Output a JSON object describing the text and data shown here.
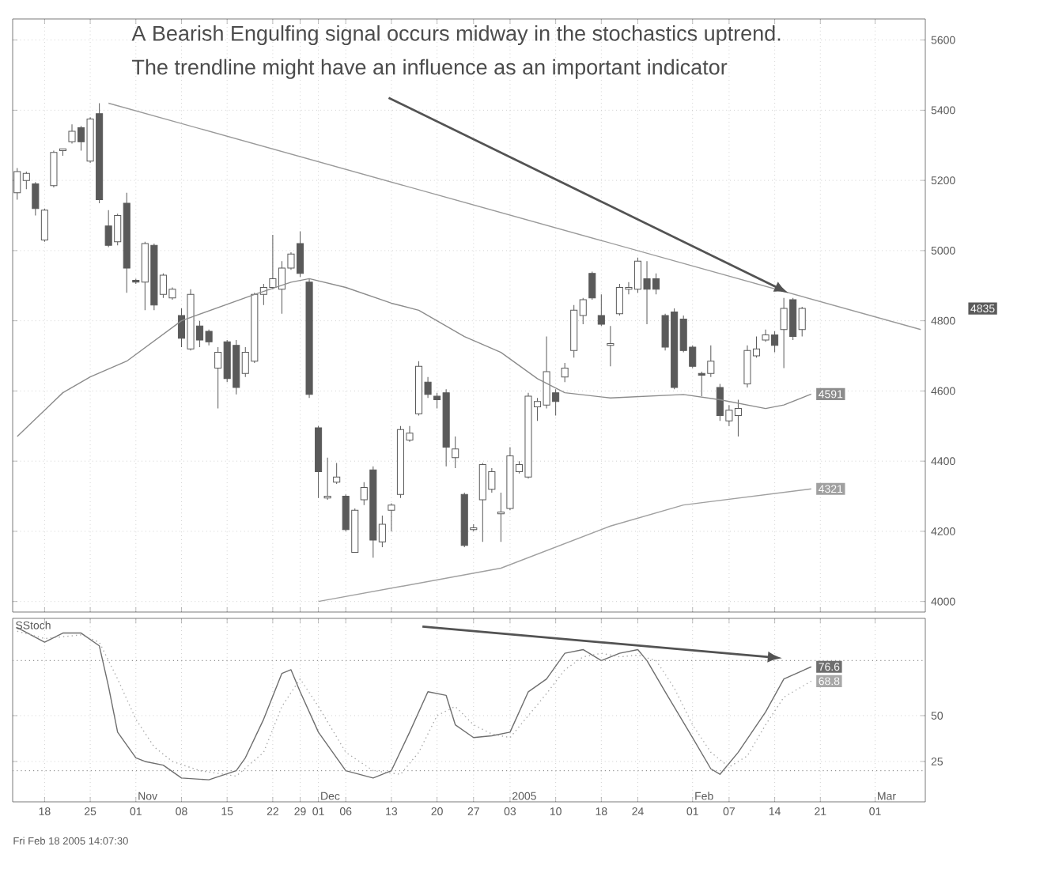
{
  "chart_data": [
    {
      "type": "candlestick",
      "categories": [
        null,
        null,
        null,
        "18",
        null,
        null,
        null,
        null,
        "25",
        null,
        null,
        null,
        null,
        "01",
        null,
        null,
        null,
        null,
        "08",
        null,
        null,
        null,
        null,
        "15",
        null,
        null,
        null,
        null,
        "22",
        null,
        null,
        "29",
        null,
        "01",
        null,
        null,
        "06",
        null,
        null,
        null,
        null,
        "13",
        null,
        null,
        null,
        null,
        "20",
        null,
        null,
        null,
        "27",
        null,
        null,
        null,
        "03",
        null,
        null,
        null,
        null,
        "10",
        null,
        null,
        null,
        null,
        "18",
        null,
        null,
        null,
        "24",
        null,
        null,
        null,
        null,
        null,
        "01",
        null,
        null,
        null,
        "07",
        null,
        null,
        null,
        null,
        "14",
        null,
        null,
        null,
        null,
        "21",
        null,
        null,
        null,
        null,
        null,
        "01",
        null,
        null,
        null,
        null,
        null
      ],
      "series": [
        {
          "type": "candlestick",
          "color": "#5a5a5a",
          "ohlc": [
            [
              5165,
              5235,
              5145,
              5225
            ],
            [
              5200,
              5225,
              5175,
              5220
            ],
            [
              5190,
              5195,
              5100,
              5120
            ],
            [
              5030,
              5120,
              5025,
              5115
            ],
            [
              5185,
              5285,
              5180,
              5280
            ],
            [
              5285,
              5290,
              5270,
              5290
            ],
            [
              5310,
              5360,
              5305,
              5340
            ],
            [
              5350,
              5355,
              5285,
              5310
            ],
            [
              5255,
              5380,
              5250,
              5375
            ],
            [
              5390,
              5420,
              5135,
              5145
            ],
            [
              5070,
              5115,
              5010,
              5015
            ],
            [
              5025,
              5105,
              5015,
              5100
            ],
            [
              5135,
              5165,
              4880,
              4950
            ],
            [
              4915,
              4920,
              4905,
              4910
            ],
            [
              4910,
              5025,
              4830,
              5020
            ],
            [
              5015,
              5020,
              4830,
              4845
            ],
            [
              4875,
              4935,
              4865,
              4930
            ],
            [
              4865,
              4895,
              4860,
              4890
            ],
            [
              4815,
              4835,
              4725,
              4750
            ],
            [
              4720,
              4890,
              4715,
              4875
            ],
            [
              4785,
              4800,
              4725,
              4745
            ],
            [
              4770,
              4775,
              4730,
              4740
            ],
            [
              4665,
              4725,
              4550,
              4710
            ],
            [
              4740,
              4745,
              4625,
              4635
            ],
            [
              4730,
              4745,
              4590,
              4610
            ],
            [
              4650,
              4725,
              4640,
              4710
            ],
            [
              4685,
              4880,
              4680,
              4875
            ],
            [
              4875,
              4905,
              4845,
              4895
            ],
            [
              4895,
              5045,
              4890,
              4920
            ],
            [
              4890,
              4970,
              4820,
              4950
            ],
            [
              4950,
              4995,
              4945,
              4990
            ],
            [
              5020,
              5055,
              4925,
              4935
            ],
            [
              4910,
              4920,
              4580,
              4590
            ],
            [
              4495,
              4500,
              4295,
              4370
            ],
            [
              4295,
              4410,
              4290,
              4300
            ],
            [
              4340,
              4395,
              4335,
              4355
            ],
            [
              4300,
              4305,
              4200,
              4205
            ],
            [
              4140,
              4265,
              4140,
              4260
            ],
            [
              4290,
              4340,
              4275,
              4325
            ],
            [
              4375,
              4385,
              4125,
              4175
            ],
            [
              4170,
              4245,
              4155,
              4220
            ],
            [
              4260,
              4280,
              4200,
              4275
            ],
            [
              4305,
              4500,
              4295,
              4490
            ],
            [
              4460,
              4500,
              4455,
              4480
            ],
            [
              4535,
              4685,
              4530,
              4670
            ],
            [
              4625,
              4640,
              4580,
              4590
            ],
            [
              4585,
              4595,
              4550,
              4575
            ],
            [
              4595,
              4605,
              4385,
              4440
            ],
            [
              4410,
              4470,
              4380,
              4435
            ],
            [
              4305,
              4310,
              4155,
              4160
            ],
            [
              4205,
              4220,
              4200,
              4210
            ],
            [
              4290,
              4395,
              4170,
              4390
            ],
            [
              4320,
              4380,
              4310,
              4370
            ],
            [
              4250,
              4310,
              4170,
              4255
            ],
            [
              4265,
              4440,
              4260,
              4415
            ],
            [
              4370,
              4400,
              4365,
              4390
            ],
            [
              4355,
              4595,
              4350,
              4585
            ],
            [
              4555,
              4580,
              4515,
              4570
            ],
            [
              4560,
              4755,
              4550,
              4655
            ],
            [
              4595,
              4605,
              4530,
              4570
            ],
            [
              4640,
              4680,
              4625,
              4665
            ],
            [
              4715,
              4845,
              4695,
              4830
            ],
            [
              4815,
              4865,
              4790,
              4860
            ],
            [
              4935,
              4940,
              4860,
              4865
            ],
            [
              4815,
              4875,
              4785,
              4790
            ],
            [
              4730,
              4785,
              4670,
              4735
            ],
            [
              4820,
              4905,
              4815,
              4895
            ],
            [
              4890,
              4910,
              4875,
              4895
            ],
            [
              4890,
              4980,
              4880,
              4970
            ],
            [
              4920,
              4970,
              4790,
              4890
            ],
            [
              4920,
              4935,
              4875,
              4890
            ],
            [
              4815,
              4820,
              4715,
              4725
            ],
            [
              4825,
              4835,
              4605,
              4610
            ],
            [
              4805,
              4815,
              4710,
              4715
            ],
            [
              4725,
              4730,
              4665,
              4670
            ],
            [
              4650,
              4655,
              4585,
              4645
            ],
            [
              4650,
              4730,
              4640,
              4685
            ],
            [
              4610,
              4620,
              4515,
              4530
            ],
            [
              4515,
              4560,
              4500,
              4545
            ],
            [
              4530,
              4575,
              4470,
              4550
            ],
            [
              4620,
              4730,
              4610,
              4715
            ],
            [
              4700,
              4755,
              4695,
              4720
            ],
            [
              4745,
              4775,
              4740,
              4760
            ],
            [
              4760,
              4770,
              4710,
              4730
            ],
            [
              4775,
              4865,
              4665,
              4835
            ],
            [
              4860,
              4865,
              4745,
              4755
            ],
            [
              4775,
              4840,
              4755,
              4835
            ],
            null,
            null,
            null,
            null,
            null,
            null,
            null,
            null,
            null,
            null,
            null,
            null,
            null
          ],
          "value_labels": [
            null,
            null,
            null,
            null,
            null,
            null,
            null,
            null,
            null,
            null,
            null,
            null,
            null,
            null,
            null,
            null,
            null,
            null,
            null,
            null,
            null,
            null,
            null,
            null,
            null,
            null,
            null,
            null,
            null,
            null,
            null,
            null,
            null,
            null,
            null,
            null,
            null,
            null,
            null,
            null,
            null,
            null,
            null,
            null,
            null,
            null,
            null,
            null,
            null,
            null,
            null,
            null,
            null,
            null,
            null,
            null,
            null,
            null,
            null,
            null,
            null,
            null,
            null,
            null,
            null,
            null,
            null,
            null,
            null,
            null,
            null,
            null,
            null,
            null,
            null,
            null,
            null,
            null,
            null,
            null,
            null,
            null,
            null,
            null,
            null,
            null,
            "4835",
            null,
            null,
            null,
            null,
            null,
            null,
            null,
            null,
            null,
            null,
            null,
            null,
            null
          ]
        },
        {
          "type": "line",
          "color": "#8c8c8c",
          "value_labels": [
            null,
            null,
            null,
            null,
            null,
            null,
            null,
            null,
            null,
            null,
            null,
            null,
            null,
            null,
            null,
            null,
            null,
            null,
            null,
            null,
            null,
            null,
            null,
            null,
            null,
            null,
            null,
            null,
            null,
            null,
            null,
            null,
            null,
            null,
            null,
            null,
            null,
            null,
            null,
            null,
            null,
            null,
            null,
            null,
            null,
            null,
            null,
            null,
            null,
            null,
            null,
            null,
            null,
            null,
            null,
            null,
            null,
            null,
            null,
            null,
            null,
            null,
            null,
            null,
            null,
            null,
            null,
            null,
            null,
            null,
            null,
            null,
            null,
            null,
            null,
            null,
            null,
            null,
            null,
            null,
            null,
            null,
            null,
            null,
            null,
            null,
            null,
            "4591",
            null,
            null,
            null,
            null,
            null,
            null,
            null,
            null,
            null,
            null,
            null,
            null
          ],
          "values": [
            4470,
            null,
            null,
            null,
            null,
            4595,
            null,
            null,
            4640,
            null,
            null,
            null,
            4685,
            null,
            null,
            null,
            null,
            null,
            4800,
            null,
            null,
            null,
            null,
            null,
            null,
            null,
            4875,
            null,
            null,
            null,
            4910,
            null,
            4920,
            null,
            null,
            null,
            4895,
            null,
            null,
            null,
            null,
            4850,
            null,
            null,
            4830,
            null,
            null,
            null,
            null,
            4755,
            null,
            null,
            null,
            4710,
            null,
            null,
            null,
            4635,
            null,
            null,
            4595,
            null,
            null,
            null,
            null,
            4580,
            null,
            null,
            null,
            null,
            null,
            null,
            null,
            4590,
            null,
            null,
            null,
            4575,
            null,
            null,
            null,
            null,
            4550,
            null,
            4560,
            null,
            null,
            4591,
            null,
            null,
            null,
            null,
            null,
            null,
            null,
            null,
            null,
            null,
            null,
            null
          ]
        },
        {
          "type": "line",
          "color": "#a0a0a0",
          "value_labels": [
            null,
            null,
            null,
            null,
            null,
            null,
            null,
            null,
            null,
            null,
            null,
            null,
            null,
            null,
            null,
            null,
            null,
            null,
            null,
            null,
            null,
            null,
            null,
            null,
            null,
            null,
            null,
            null,
            null,
            null,
            null,
            null,
            null,
            null,
            null,
            null,
            null,
            null,
            null,
            null,
            null,
            null,
            null,
            null,
            null,
            null,
            null,
            null,
            null,
            null,
            null,
            null,
            null,
            null,
            null,
            null,
            null,
            null,
            null,
            null,
            null,
            null,
            null,
            null,
            null,
            null,
            null,
            null,
            null,
            null,
            null,
            null,
            null,
            null,
            null,
            null,
            null,
            null,
            null,
            null,
            null,
            null,
            null,
            null,
            null,
            null,
            null,
            "4321",
            null,
            null,
            null,
            null,
            null,
            null,
            null,
            null,
            null,
            null,
            null,
            null
          ],
          "values": [
            null,
            null,
            null,
            null,
            null,
            null,
            null,
            null,
            null,
            null,
            null,
            null,
            null,
            null,
            null,
            null,
            null,
            null,
            null,
            null,
            null,
            null,
            null,
            null,
            null,
            null,
            null,
            null,
            null,
            null,
            null,
            null,
            null,
            4000,
            null,
            null,
            null,
            null,
            null,
            null,
            null,
            null,
            null,
            null,
            null,
            null,
            null,
            null,
            null,
            null,
            null,
            null,
            null,
            4095,
            null,
            null,
            null,
            null,
            null,
            null,
            null,
            null,
            null,
            null,
            null,
            4215,
            null,
            null,
            null,
            null,
            null,
            null,
            null,
            4275,
            null,
            null,
            null,
            null,
            null,
            null,
            null,
            null,
            null,
            null,
            null,
            null,
            null,
            4321,
            null,
            null,
            null,
            null,
            null,
            null,
            null,
            null,
            null,
            null,
            null,
            null
          ]
        },
        {
          "type": "line",
          "color": "#9a9a9a",
          "values": [
            null,
            null,
            null,
            null,
            null,
            null,
            null,
            null,
            null,
            null,
            5420,
            null,
            null,
            null,
            null,
            null,
            null,
            null,
            null,
            null,
            null,
            null,
            null,
            null,
            null,
            null,
            null,
            null,
            null,
            null,
            null,
            null,
            null,
            null,
            null,
            null,
            null,
            null,
            null,
            null,
            null,
            null,
            null,
            null,
            null,
            null,
            null,
            null,
            null,
            null,
            null,
            null,
            null,
            null,
            null,
            null,
            null,
            null,
            null,
            null,
            null,
            null,
            null,
            null,
            null,
            null,
            null,
            null,
            null,
            null,
            null,
            null,
            null,
            null,
            null,
            null,
            null,
            null,
            null,
            null,
            null,
            null,
            null,
            null,
            null,
            null,
            null,
            null,
            null,
            null,
            null,
            null,
            null,
            null,
            null,
            null,
            null,
            null,
            null,
            4775
          ]
        }
      ],
      "ylim": [
        3970,
        5660
      ],
      "yticks": [
        4000,
        4200,
        4400,
        4600,
        4800,
        5000,
        5200,
        5400,
        5600
      ],
      "tick_labels": "y",
      "grid": true,
      "annotations": [
        "A Bearish Engulfing signal occurs midway in the stochastics uptrend.",
        "The trendline might have an influence as an important indicator"
      ]
    },
    {
      "type": "line",
      "title": "SStoch",
      "categories": [
        null,
        null,
        null,
        "18",
        null,
        null,
        null,
        null,
        "25",
        null,
        null,
        null,
        null,
        "01",
        null,
        null,
        null,
        null,
        "08",
        null,
        null,
        null,
        null,
        "15",
        null,
        null,
        null,
        null,
        "22",
        null,
        null,
        "29",
        null,
        "01",
        null,
        null,
        "06",
        null,
        null,
        null,
        null,
        "13",
        null,
        null,
        null,
        null,
        "20",
        null,
        null,
        null,
        "27",
        null,
        null,
        null,
        "03",
        null,
        null,
        null,
        null,
        "10",
        null,
        null,
        null,
        null,
        "18",
        null,
        null,
        null,
        "24",
        null,
        null,
        null,
        null,
        null,
        "01",
        null,
        null,
        null,
        "07",
        null,
        null,
        null,
        null,
        "14",
        null,
        null,
        null,
        null,
        "21",
        null,
        null,
        null,
        null,
        null,
        "01",
        null,
        null,
        null,
        null,
        null
      ],
      "series": [
        {
          "color": "#6e6e6e",
          "line_style": "solid",
          "value_labels": [
            null,
            null,
            null,
            null,
            null,
            null,
            null,
            null,
            null,
            null,
            null,
            null,
            null,
            null,
            null,
            null,
            null,
            null,
            null,
            null,
            null,
            null,
            null,
            null,
            null,
            null,
            null,
            null,
            null,
            null,
            null,
            null,
            null,
            null,
            null,
            null,
            null,
            null,
            null,
            null,
            null,
            null,
            null,
            null,
            null,
            null,
            null,
            null,
            null,
            null,
            null,
            null,
            null,
            null,
            null,
            null,
            null,
            null,
            null,
            null,
            null,
            null,
            null,
            null,
            null,
            null,
            null,
            null,
            null,
            null,
            null,
            null,
            null,
            null,
            null,
            null,
            null,
            null,
            null,
            null,
            null,
            null,
            null,
            null,
            null,
            null,
            null,
            "76.6",
            null,
            null,
            null,
            null,
            null,
            null,
            null,
            null,
            null,
            null,
            null,
            null
          ],
          "values": [
            98,
            null,
            null,
            90,
            null,
            95,
            null,
            95,
            null,
            88,
            66,
            41,
            null,
            27,
            25,
            null,
            23,
            null,
            16,
            null,
            null,
            15,
            null,
            null,
            20,
            27,
            null,
            48,
            null,
            73,
            75,
            63,
            null,
            41,
            null,
            null,
            20,
            null,
            null,
            16,
            null,
            20,
            null,
            41,
            null,
            63,
            null,
            61,
            45,
            null,
            38,
            null,
            39,
            null,
            41,
            null,
            63,
            null,
            70,
            null,
            84,
            null,
            86,
            null,
            80,
            null,
            84,
            null,
            86,
            80,
            null,
            63,
            null,
            null,
            38,
            null,
            21,
            18,
            null,
            30,
            null,
            null,
            52,
            null,
            70,
            null,
            null,
            76.6,
            null,
            null,
            null,
            null,
            null,
            null,
            null,
            null,
            null,
            null,
            null,
            null
          ]
        },
        {
          "color": "#a8a8a8",
          "line_style": "dotted",
          "value_labels": [
            null,
            null,
            null,
            null,
            null,
            null,
            null,
            null,
            null,
            null,
            null,
            null,
            null,
            null,
            null,
            null,
            null,
            null,
            null,
            null,
            null,
            null,
            null,
            null,
            null,
            null,
            null,
            null,
            null,
            null,
            null,
            null,
            null,
            null,
            null,
            null,
            null,
            null,
            null,
            null,
            null,
            null,
            null,
            null,
            null,
            null,
            null,
            null,
            null,
            null,
            null,
            null,
            null,
            null,
            null,
            null,
            null,
            null,
            null,
            null,
            null,
            null,
            null,
            null,
            null,
            null,
            null,
            null,
            null,
            null,
            null,
            null,
            null,
            null,
            null,
            null,
            null,
            null,
            null,
            null,
            null,
            null,
            null,
            null,
            null,
            null,
            null,
            "68.8",
            null,
            null,
            null,
            null,
            null,
            null,
            null,
            null,
            null,
            null,
            null,
            null
          ],
          "values": [
            96,
            null,
            null,
            92,
            null,
            93,
            null,
            94,
            null,
            90,
            null,
            70,
            null,
            48,
            null,
            33,
            null,
            25,
            null,
            null,
            20,
            null,
            null,
            null,
            17,
            null,
            null,
            30,
            null,
            55,
            null,
            70,
            null,
            55,
            null,
            null,
            30,
            null,
            null,
            20,
            null,
            null,
            18,
            null,
            30,
            null,
            50,
            null,
            55,
            null,
            45,
            null,
            40,
            null,
            38,
            null,
            50,
            null,
            62,
            null,
            75,
            null,
            82,
            null,
            84,
            null,
            82,
            null,
            83,
            null,
            80,
            null,
            65,
            null,
            45,
            null,
            30,
            null,
            22,
            null,
            28,
            null,
            45,
            null,
            60,
            null,
            null,
            68.8,
            null,
            null,
            null,
            null,
            null,
            null,
            null,
            null,
            null,
            null,
            null,
            null
          ]
        }
      ],
      "ylim": [
        3,
        103
      ],
      "yticks": [
        25,
        50
      ],
      "grid": true,
      "ref_lines": [
        {
          "axis": "y",
          "value": 80,
          "color": "#909090",
          "line_style": "dotted"
        },
        {
          "axis": "y",
          "value": 20,
          "color": "#909090",
          "line_style": "dotted"
        }
      ],
      "annotations": [
        "Nov",
        "Dec",
        "2005",
        "Feb",
        "Mar",
        "Fri Feb 18 2005 14:07:30"
      ]
    }
  ]
}
